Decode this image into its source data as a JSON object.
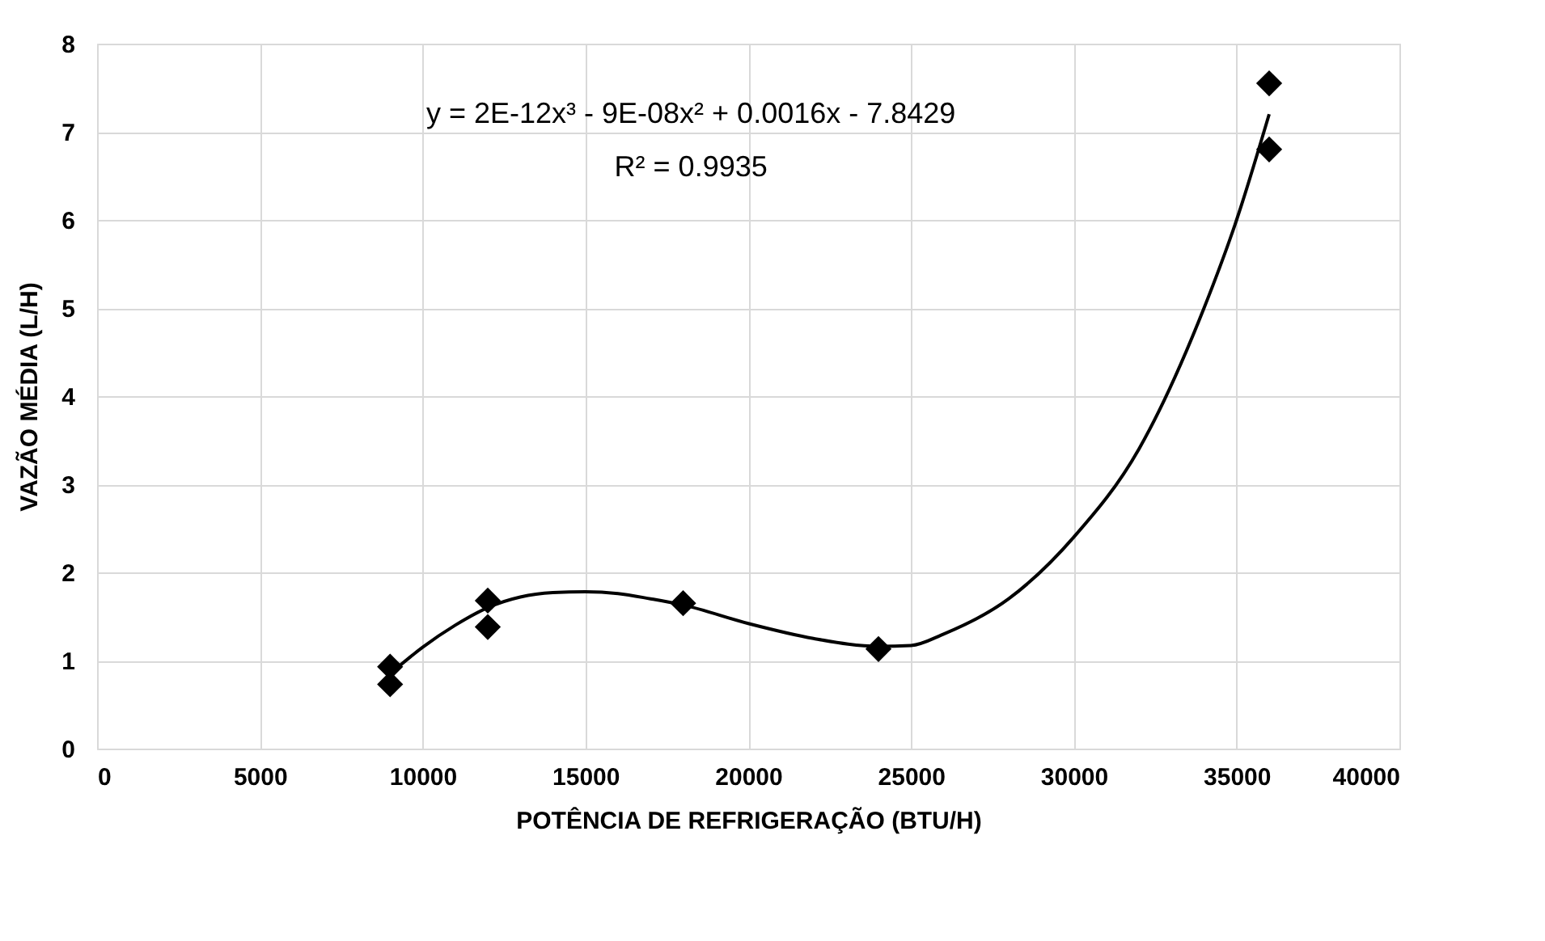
{
  "chart_data": {
    "type": "scatter",
    "xlabel": "POTÊNCIA DE REFRIGERAÇÃO (BTU/H)",
    "ylabel": "VAZÃO MÉDIA (L/H)",
    "xlim": [
      0,
      40000
    ],
    "xticks": [
      0,
      5000,
      10000,
      15000,
      20000,
      25000,
      30000,
      35000,
      40000
    ],
    "ylim": [
      0,
      8
    ],
    "yticks": [
      0,
      1,
      2,
      3,
      4,
      5,
      6,
      7,
      8
    ],
    "grid": true,
    "series": [
      {
        "marker": "diamond",
        "color": "#000000",
        "x": [
          9000,
          9000,
          12000,
          12000,
          18000,
          24000,
          36000,
          36000
        ],
        "values": [
          0.93,
          0.73,
          1.68,
          1.38,
          1.65,
          1.13,
          7.55,
          6.8
        ]
      },
      {
        "type": "line",
        "marker": "none",
        "color": "#000000",
        "line_style": "solid",
        "x": [
          9000,
          10000,
          11000,
          12000,
          13000,
          14000,
          15000,
          16000,
          17000,
          18000,
          20000,
          22000,
          24000,
          25000,
          26000,
          28000,
          30000,
          32000,
          34000,
          35000,
          36000
        ],
        "values": [
          0.85,
          1.15,
          1.4,
          1.6,
          1.72,
          1.77,
          1.78,
          1.76,
          1.7,
          1.63,
          1.42,
          1.25,
          1.16,
          1.17,
          1.3,
          1.7,
          2.4,
          3.4,
          5.0,
          6.0,
          7.2
        ]
      }
    ],
    "annotations": [
      "y = 2E-12x³ - 9E-08x² + 0.0016x - 7.8429",
      "R² = 0.9935"
    ]
  }
}
